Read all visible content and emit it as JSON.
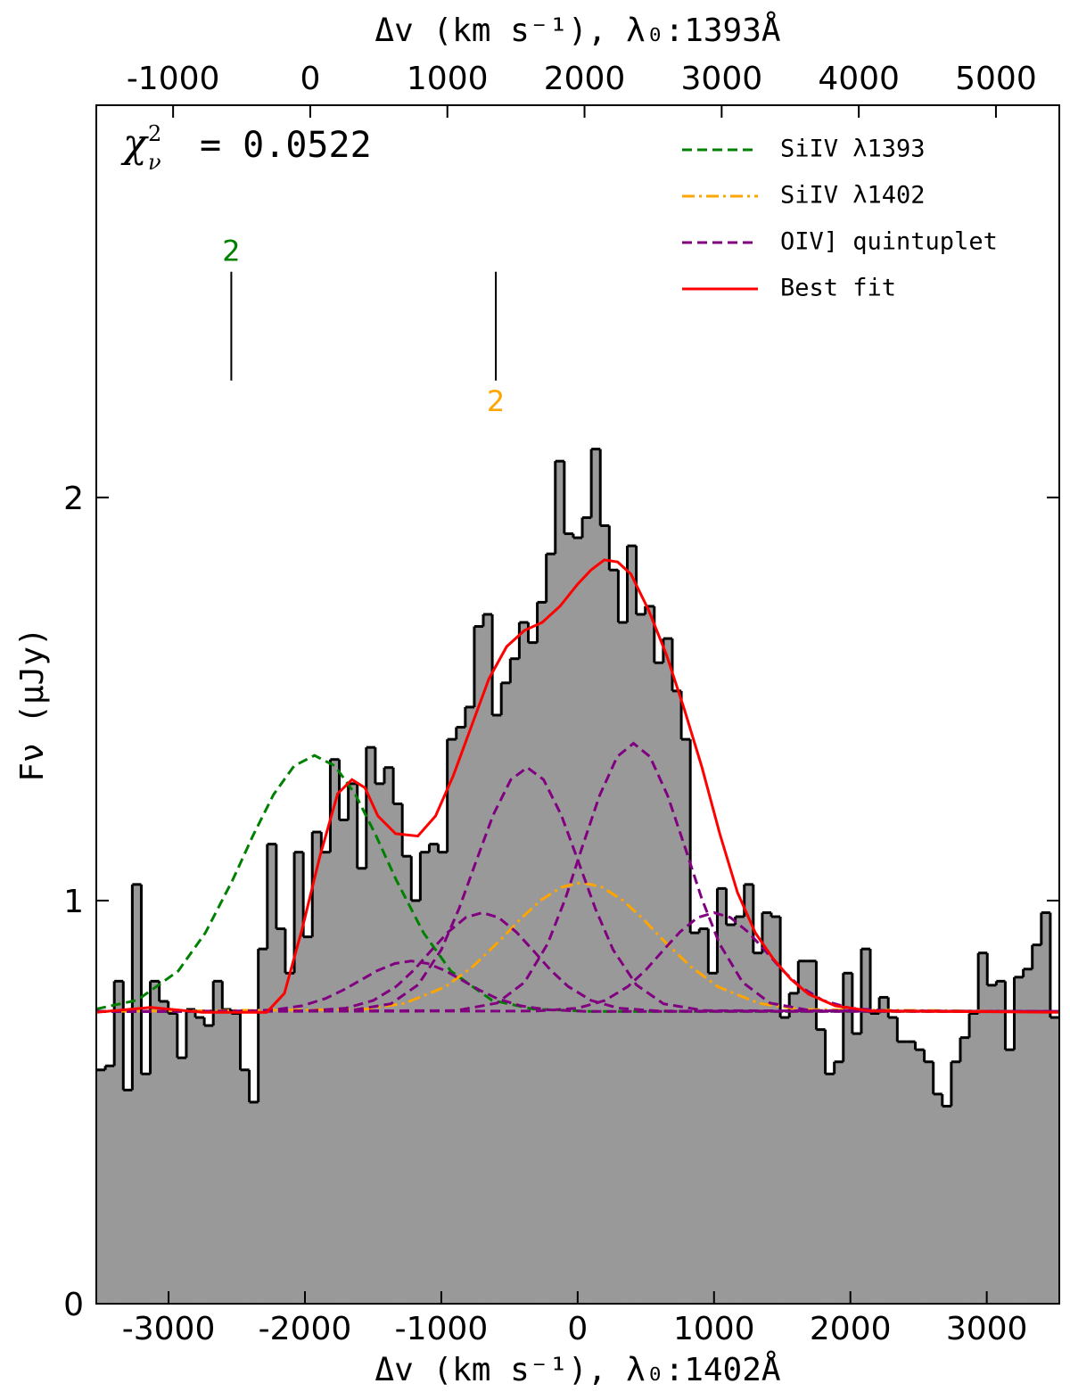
{
  "chart_data": {
    "type": "histogram",
    "x_label": "Δv (km s⁻¹), λ₀:1402Å",
    "x2_label": "Δv (km s⁻¹), λ₀:1393Å",
    "y_label": "Fν (μJy)",
    "annotation": {
      "symbol": "χ",
      "sup": "2",
      "sub": "ν",
      "text": "= 0.0522"
    },
    "xlim": [
      -3530,
      3532
    ],
    "xticks": [
      -3000,
      -2000,
      -1000,
      0,
      1000,
      2000,
      3000
    ],
    "x2lim": [
      -1560,
      5462
    ],
    "x2ticks": [
      -1000,
      0,
      1000,
      2000,
      3000,
      4000,
      5000
    ],
    "ylim": [
      0,
      2.973
    ],
    "yticks": [
      0,
      1,
      2
    ],
    "legend": "upper right",
    "color": "#999999",
    "bins": [
      -3530,
      -3464,
      -3398,
      -3332,
      -3266,
      -3200,
      -3134,
      -3068,
      -3002,
      -2936,
      -2870,
      -2804,
      -2738,
      -2672,
      -2606,
      -2540,
      -2474,
      -2408,
      -2342,
      -2276,
      -2210,
      -2144,
      -2078,
      -2012,
      -1946,
      -1880,
      -1814,
      -1748,
      -1682,
      -1616,
      -1550,
      -1484,
      -1418,
      -1352,
      -1286,
      -1220,
      -1154,
      -1088,
      -1022,
      -956,
      -890,
      -824,
      -758,
      -692,
      -626,
      -560,
      -494,
      -428,
      -362,
      -296,
      -230,
      -164,
      -98,
      -32,
      34,
      100,
      166,
      232,
      298,
      364,
      430,
      496,
      562,
      628,
      694,
      760,
      826,
      892,
      958,
      1024,
      1090,
      1156,
      1222,
      1288,
      1354,
      1420,
      1486,
      1552,
      1618,
      1684,
      1750,
      1816,
      1882,
      1948,
      2014,
      2080,
      2146,
      2212,
      2278,
      2344,
      2410,
      2476,
      2542,
      2608,
      2674,
      2740,
      2806,
      2872,
      2938,
      3004,
      3070,
      3136,
      3202,
      3268,
      3334,
      3400,
      3466,
      3532
    ],
    "values": [
      0.58,
      0.59,
      0.8,
      0.53,
      1.04,
      0.57,
      0.8,
      0.75,
      0.72,
      0.61,
      0.73,
      0.71,
      0.69,
      0.8,
      0.73,
      0.72,
      0.58,
      0.5,
      0.88,
      1.14,
      0.93,
      0.82,
      1.12,
      0.91,
      1.17,
      1.12,
      1.35,
      1.2,
      1.29,
      1.08,
      1.38,
      1.29,
      1.33,
      1.24,
      1.11,
      1.0,
      1.12,
      1.14,
      1.12,
      1.4,
      1.43,
      1.48,
      1.68,
      1.71,
      1.46,
      1.54,
      1.6,
      1.69,
      1.64,
      1.74,
      1.86,
      2.09,
      1.91,
      1.9,
      1.95,
      2.12,
      1.93,
      1.82,
      1.69,
      1.88,
      1.71,
      1.73,
      1.59,
      1.65,
      1.52,
      1.4,
      0.92,
      0.93,
      0.82,
      1.03,
      0.94,
      0.96,
      1.04,
      0.87,
      0.97,
      0.96,
      0.71,
      0.77,
      0.85,
      0.85,
      0.68,
      0.57,
      0.6,
      0.82,
      0.67,
      0.88,
      0.72,
      0.76,
      0.71,
      0.65,
      0.65,
      0.63,
      0.6,
      0.52,
      0.49,
      0.6,
      0.66,
      0.72,
      0.87,
      0.79,
      0.8,
      0.63,
      0.81,
      0.83,
      0.89,
      0.97,
      0.71
    ],
    "series": [
      {
        "name": "SiIV λ1393",
        "color": "#008000",
        "linestyle": "dashed",
        "curves": [
          {
            "x": [
              -3530,
              -3230,
              -2930,
              -2730,
              -2530,
              -2380,
              -2230,
              -2080,
              -1930,
              -1780,
              -1630,
              -1480,
              -1330,
              -1130,
              -930,
              -630,
              -330,
              100,
              3532
            ],
            "values": [
              0.731,
              0.753,
              0.825,
              0.92,
              1.051,
              1.162,
              1.263,
              1.334,
              1.36,
              1.334,
              1.263,
              1.162,
              1.051,
              0.92,
              0.825,
              0.753,
              0.731,
              0.725,
              0.725
            ]
          }
        ]
      },
      {
        "name": "SiIV λ1402",
        "color": "#ffa500",
        "linestyle": "dashdot",
        "curves": [
          {
            "x": [
              -3530,
              -1570,
              -1270,
              -970,
              -770,
              -570,
              -420,
              -270,
              -120,
              30,
              180,
              330,
              480,
              630,
              830,
              1030,
              1330,
              1630,
              3532
            ],
            "values": [
              0.725,
              0.73,
              0.745,
              0.786,
              0.836,
              0.901,
              0.954,
              1.001,
              1.033,
              1.045,
              1.033,
              1.001,
              0.954,
              0.901,
              0.836,
              0.786,
              0.745,
              0.73,
              0.725
            ]
          }
        ]
      },
      {
        "name": "OIV] quintuplet",
        "color": "#800080",
        "linestyle": "dashed",
        "curves": [
          {
            "x": [
              -3530,
              -2520,
              -2220,
              -2020,
              -1850,
              -1720,
              -1600,
              -1470,
              -1340,
              -1220,
              -1100,
              -970,
              -840,
              -720,
              -590,
              -420,
              -220,
              80,
              3532
            ],
            "values": [
              0.725,
              0.725,
              0.729,
              0.739,
              0.757,
              0.778,
              0.801,
              0.826,
              0.844,
              0.85,
              0.844,
              0.826,
              0.801,
              0.778,
              0.757,
              0.739,
              0.729,
              0.725,
              0.725
            ]
          },
          {
            "x": [
              -3530,
              -2000,
              -1700,
              -1500,
              -1330,
              -1200,
              -1080,
              -950,
              -820,
              -700,
              -580,
              -450,
              -320,
              -200,
              -70,
              100,
              300,
              600,
              3532
            ],
            "values": [
              0.725,
              0.726,
              0.733,
              0.752,
              0.787,
              0.828,
              0.874,
              0.922,
              0.958,
              0.97,
              0.958,
              0.922,
              0.874,
              0.828,
              0.787,
              0.752,
              0.733,
              0.726,
              0.725
            ]
          },
          {
            "x": [
              -3530,
              -1670,
              -1370,
              -1170,
              -1000,
              -870,
              -750,
              -620,
              -490,
              -370,
              -250,
              -120,
              10,
              130,
              260,
              430,
              630,
              930,
              3532
            ],
            "values": [
              0.725,
              0.727,
              0.744,
              0.791,
              0.878,
              0.98,
              1.092,
              1.212,
              1.3,
              1.33,
              1.3,
              1.212,
              1.092,
              0.98,
              0.878,
              0.791,
              0.744,
              0.727,
              0.725
            ]
          },
          {
            "x": [
              -3530,
              -890,
              -590,
              -390,
              -220,
              -90,
              30,
              160,
              290,
              410,
              530,
              660,
              790,
              910,
              1040,
              1210,
              1410,
              1710,
              3532
            ],
            "values": [
              0.725,
              0.727,
              0.746,
              0.797,
              0.893,
              1.005,
              1.129,
              1.26,
              1.357,
              1.39,
              1.357,
              1.26,
              1.129,
              1.005,
              0.893,
              0.797,
              0.746,
              0.727,
              0.725
            ]
          },
          {
            "x": [
              -3530,
              -300,
              0,
              200,
              370,
              500,
              620,
              750,
              880,
              1000,
              1120,
              1250,
              1380,
              1500,
              1630,
              1800,
              2000,
              2300,
              3532
            ],
            "values": [
              0.725,
              0.726,
              0.733,
              0.752,
              0.787,
              0.828,
              0.874,
              0.922,
              0.958,
              0.97,
              0.958,
              0.922,
              0.874,
              0.828,
              0.787,
              0.752,
              0.733,
              0.726,
              0.725
            ]
          }
        ]
      },
      {
        "name": "Best fit",
        "color": "#ff0000",
        "linestyle": "solid",
        "curves": [
          {
            "x": [
              -3530,
              -3130,
              -2750,
              -2280,
              -2150,
              -2020,
              -1890,
              -1760,
              -1655,
              -1560,
              -1465,
              -1335,
              -1172,
              -1042,
              -912,
              -782,
              -651,
              -521,
              -391,
              -260,
              -130,
              0,
              98,
              195,
              293,
              391,
              521,
              651,
              782,
              912,
              1042,
              1172,
              1303,
              1433,
              1563,
              1693,
              1889,
              2150,
              3532
            ],
            "values": [
              0.723,
              0.735,
              0.723,
              0.723,
              0.77,
              0.93,
              1.11,
              1.265,
              1.3,
              1.28,
              1.21,
              1.166,
              1.16,
              1.21,
              1.31,
              1.43,
              1.55,
              1.63,
              1.67,
              1.69,
              1.73,
              1.785,
              1.82,
              1.845,
              1.84,
              1.81,
              1.72,
              1.61,
              1.475,
              1.33,
              1.166,
              1.02,
              0.92,
              0.856,
              0.805,
              0.768,
              0.739,
              0.726,
              0.723
            ]
          }
        ]
      }
    ],
    "line_markers": [
      {
        "label": "2",
        "color": "#008000",
        "x": -2540,
        "y": [
          2.29,
          2.56
        ],
        "label_position": "above"
      },
      {
        "label": "2",
        "color": "#ffa500",
        "x": -600,
        "y": [
          2.29,
          2.56
        ],
        "label_position": "below"
      }
    ]
  }
}
